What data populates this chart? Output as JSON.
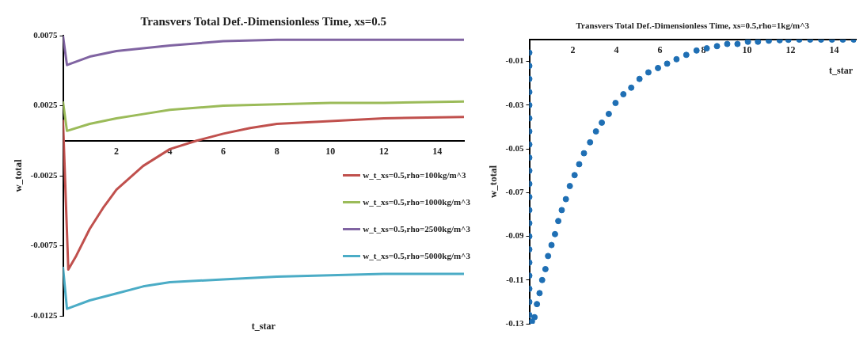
{
  "chart_data": [
    {
      "type": "line",
      "title": "Transvers Total Def.-Dimensionless Time, xs=0.5",
      "xlabel": "t_star",
      "ylabel": "w_total",
      "xlim": [
        0,
        15
      ],
      "xticks": [
        2,
        4,
        6,
        8,
        10,
        12,
        14
      ],
      "ylim": [
        -0.0125,
        0.0075
      ],
      "yticks": [
        0.0075,
        0.0025,
        -0.0025,
        -0.0075,
        -0.0125
      ],
      "legend": "right",
      "marker": "none",
      "series": [
        {
          "name": "w_t_xs=0.5,rho=100kg/m^3",
          "color": "#c0504d",
          "x": [
            0,
            0.2,
            0.5,
            1,
            1.5,
            2,
            3,
            4,
            5,
            6,
            7,
            8,
            10,
            12,
            15
          ],
          "values": [
            0.0015,
            -0.0092,
            -0.0082,
            -0.0063,
            -0.0048,
            -0.0035,
            -0.0018,
            -0.0006,
            0,
            0.0005,
            0.0009,
            0.0012,
            0.0014,
            0.0016,
            0.0017
          ]
        },
        {
          "name": "w_t_xs=0.5,rho=1000kg/m^3",
          "color": "#9bbb59",
          "x": [
            0,
            0.15,
            1,
            2,
            3,
            4,
            6,
            8,
            10,
            12,
            15
          ],
          "values": [
            0.0028,
            0.0007,
            0.0012,
            0.0016,
            0.0019,
            0.0022,
            0.0025,
            0.0026,
            0.0027,
            0.0027,
            0.0028
          ]
        },
        {
          "name": "w_t_xs=0.5,rho=2500kg/m^3",
          "color": "#8064a2",
          "x": [
            0,
            0.15,
            1,
            2,
            3,
            4,
            6,
            8,
            10,
            12,
            15
          ],
          "values": [
            0.0075,
            0.0054,
            0.006,
            0.0064,
            0.0066,
            0.0068,
            0.0071,
            0.0072,
            0.0072,
            0.0072,
            0.0072
          ]
        },
        {
          "name": "w_t_xs=0.5,rho=5000kg/m^3",
          "color": "#4bacc6",
          "x": [
            0,
            0.15,
            1,
            2,
            3,
            4,
            6,
            8,
            10,
            12,
            15
          ],
          "values": [
            -0.009,
            -0.012,
            -0.0114,
            -0.0109,
            -0.0104,
            -0.0101,
            -0.0099,
            -0.0097,
            -0.0096,
            -0.0095,
            -0.0095
          ]
        }
      ]
    },
    {
      "type": "scatter",
      "title": "Transvers Total Def.-Dimensionless Time, xs=0.5,rho=1kg/m^3",
      "xlabel": "t_star",
      "ylabel": "w_total",
      "xlim": [
        0,
        15
      ],
      "xticks": [
        2,
        4,
        6,
        8,
        10,
        12,
        14
      ],
      "ylim": [
        -0.13,
        0
      ],
      "yticks": [
        -0.01,
        -0.03,
        -0.05,
        -0.07,
        -0.09,
        -0.11,
        -0.13
      ],
      "marker": "circle",
      "series": [
        {
          "color": "#1f6fb4",
          "x": [
            0,
            0,
            0,
            0,
            0,
            0,
            0,
            0,
            0,
            0,
            0,
            0,
            0,
            0,
            0,
            0,
            0,
            0,
            0,
            0,
            0,
            0.12,
            0.24,
            0.35,
            0.47,
            0.59,
            0.74,
            0.86,
            1.02,
            1.18,
            1.33,
            1.49,
            1.68,
            1.86,
            2.08,
            2.29,
            2.51,
            2.79,
            3.06,
            3.33,
            3.65,
            3.96,
            4.32,
            4.68,
            5.06,
            5.47,
            5.91,
            6.33,
            6.76,
            7.21,
            7.68,
            8.15,
            8.62,
            9.09,
            9.56,
            10.04,
            10.5,
            11.0,
            11.5,
            11.9,
            12.4,
            12.9,
            13.4,
            13.9,
            14.4,
            14.9
          ],
          "values": [
            -0.006,
            -0.012,
            -0.018,
            -0.024,
            -0.03,
            -0.036,
            -0.042,
            -0.048,
            -0.054,
            -0.06,
            -0.066,
            -0.072,
            -0.078,
            -0.084,
            -0.09,
            -0.096,
            -0.102,
            -0.108,
            -0.114,
            -0.12,
            -0.126,
            -0.129,
            -0.127,
            -0.121,
            -0.116,
            -0.11,
            -0.105,
            -0.099,
            -0.094,
            -0.089,
            -0.083,
            -0.078,
            -0.073,
            -0.067,
            -0.062,
            -0.057,
            -0.052,
            -0.047,
            -0.042,
            -0.038,
            -0.034,
            -0.029,
            -0.025,
            -0.022,
            -0.018,
            -0.015,
            -0.013,
            -0.011,
            -0.009,
            -0.007,
            -0.005,
            -0.004,
            -0.003,
            -0.002,
            -0.002,
            -0.001,
            -0.001,
            -0.0005,
            -0.0003,
            -0.0001,
            0,
            0,
            0,
            0,
            0,
            0
          ]
        }
      ]
    }
  ]
}
